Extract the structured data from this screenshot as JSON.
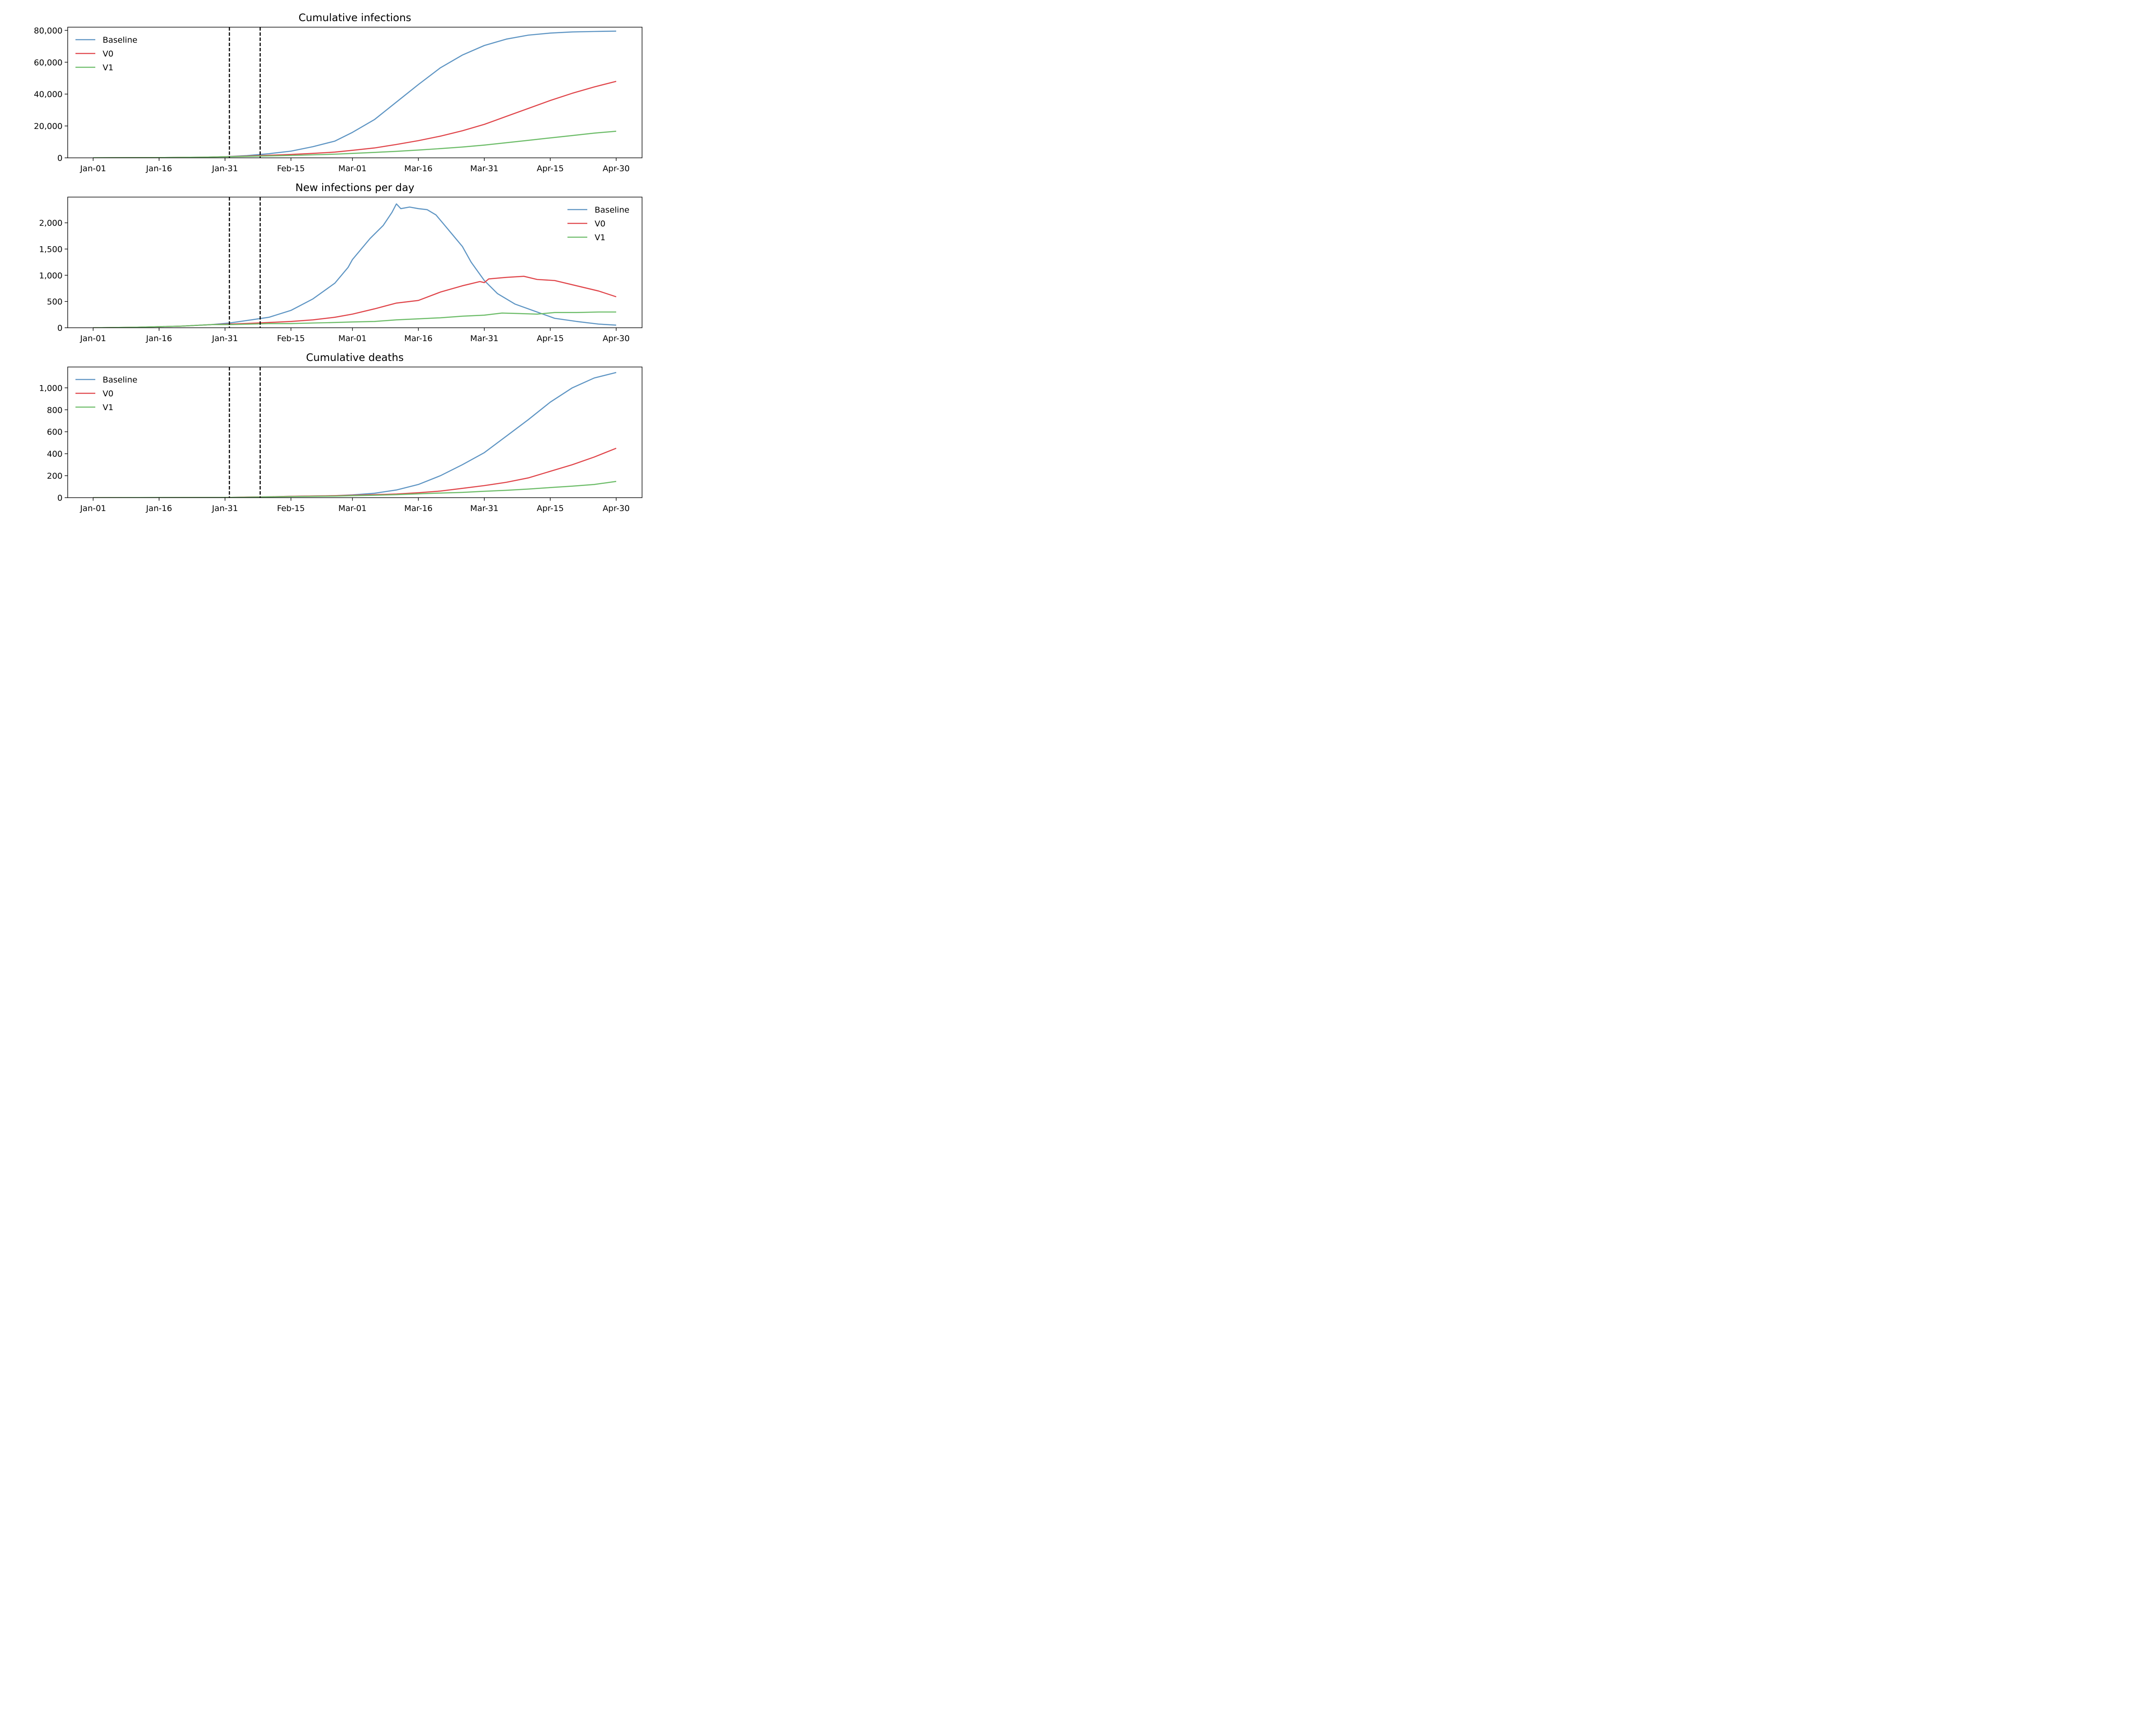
{
  "chart_data": [
    {
      "type": "line",
      "title": "Cumulative infections",
      "x_ticks": [
        "Jan-01",
        "Jan-16",
        "Jan-31",
        "Feb-15",
        "Mar-01",
        "Mar-16",
        "Mar-31",
        "Apr-15",
        "Apr-30"
      ],
      "x_range": [
        "Jan-01",
        "Apr-30"
      ],
      "y_ticks": [
        "0",
        "20,000",
        "40,000",
        "60,000",
        "80,000"
      ],
      "ylim": [
        0,
        82000
      ],
      "vlines": [
        "Feb-01",
        "Feb-08"
      ],
      "legend_position": "top-left",
      "series": [
        {
          "name": "Baseline",
          "color": "#6096c4",
          "x": [
            "Jan-01",
            "Jan-16",
            "Jan-26",
            "Jan-31",
            "Feb-05",
            "Feb-10",
            "Feb-15",
            "Feb-20",
            "Feb-25",
            "Mar-01",
            "Mar-06",
            "Mar-11",
            "Mar-16",
            "Mar-21",
            "Mar-26",
            "Mar-31",
            "Apr-05",
            "Apr-10",
            "Apr-15",
            "Apr-20",
            "Apr-25",
            "Apr-30"
          ],
          "y": [
            50,
            150,
            400,
            700,
            1400,
            2600,
            4200,
            7000,
            10500,
            16000,
            24000,
            35000,
            46000,
            56500,
            64500,
            70500,
            74500,
            77000,
            78300,
            79000,
            79300,
            79500
          ]
        },
        {
          "name": "V0",
          "color": "#e0474c",
          "x": [
            "Jan-01",
            "Jan-16",
            "Jan-26",
            "Jan-31",
            "Feb-05",
            "Feb-10",
            "Feb-15",
            "Feb-20",
            "Feb-25",
            "Mar-01",
            "Mar-06",
            "Mar-11",
            "Mar-16",
            "Mar-21",
            "Mar-26",
            "Mar-31",
            "Apr-05",
            "Apr-10",
            "Apr-15",
            "Apr-20",
            "Apr-25",
            "Apr-30"
          ],
          "y": [
            50,
            150,
            400,
            700,
            1100,
            1600,
            2100,
            2800,
            3600,
            4700,
            6200,
            8400,
            10800,
            13600,
            17000,
            21000,
            26000,
            31000,
            36000,
            40500,
            44500,
            48000
          ]
        },
        {
          "name": "V1",
          "color": "#6ebd6a",
          "x": [
            "Jan-01",
            "Jan-16",
            "Jan-26",
            "Jan-31",
            "Feb-05",
            "Feb-10",
            "Feb-15",
            "Feb-20",
            "Feb-25",
            "Mar-01",
            "Mar-06",
            "Mar-11",
            "Mar-16",
            "Mar-21",
            "Mar-26",
            "Mar-31",
            "Apr-05",
            "Apr-10",
            "Apr-15",
            "Apr-20",
            "Apr-25",
            "Apr-30"
          ],
          "y": [
            50,
            150,
            400,
            650,
            900,
            1200,
            1500,
            1900,
            2300,
            2800,
            3400,
            4100,
            4900,
            5800,
            6800,
            8000,
            9500,
            11000,
            12500,
            14000,
            15500,
            16700
          ]
        }
      ]
    },
    {
      "type": "line",
      "title": "New infections per day",
      "x_ticks": [
        "Jan-01",
        "Jan-16",
        "Jan-31",
        "Feb-15",
        "Mar-01",
        "Mar-16",
        "Mar-31",
        "Apr-15",
        "Apr-30"
      ],
      "x_range": [
        "Jan-01",
        "Apr-30"
      ],
      "y_ticks": [
        "0",
        "500",
        "1,000",
        "1,500",
        "2,000"
      ],
      "ylim": [
        0,
        2490
      ],
      "vlines": [
        "Feb-01",
        "Feb-08"
      ],
      "legend_position": "top-right",
      "series": [
        {
          "name": "Baseline",
          "color": "#6096c4",
          "x": [
            "Jan-01",
            "Jan-11",
            "Jan-21",
            "Jan-28",
            "Feb-01",
            "Feb-06",
            "Feb-10",
            "Feb-15",
            "Feb-20",
            "Feb-25",
            "Feb-28",
            "Mar-01",
            "Mar-05",
            "Mar-08",
            "Mar-10",
            "Mar-11",
            "Mar-12",
            "Mar-14",
            "Mar-16",
            "Mar-18",
            "Mar-20",
            "Mar-22",
            "Mar-24",
            "Mar-26",
            "Mar-28",
            "Mar-31",
            "Apr-03",
            "Apr-07",
            "Apr-12",
            "Apr-16",
            "Apr-21",
            "Apr-26",
            "Apr-30"
          ],
          "y": [
            0,
            10,
            30,
            60,
            90,
            150,
            200,
            330,
            550,
            850,
            1150,
            1300,
            1700,
            1950,
            2200,
            2360,
            2270,
            2300,
            2270,
            2250,
            2150,
            1950,
            1750,
            1550,
            1250,
            900,
            650,
            450,
            300,
            180,
            120,
            70,
            50
          ]
        },
        {
          "name": "V0",
          "color": "#e0474c",
          "x": [
            "Jan-01",
            "Jan-11",
            "Jan-21",
            "Jan-28",
            "Feb-01",
            "Feb-06",
            "Feb-10",
            "Feb-15",
            "Feb-20",
            "Feb-25",
            "Mar-01",
            "Mar-06",
            "Mar-11",
            "Mar-16",
            "Mar-21",
            "Mar-26",
            "Mar-30",
            "Mar-31",
            "Apr-01",
            "Apr-05",
            "Apr-09",
            "Apr-12",
            "Apr-16",
            "Apr-21",
            "Apr-26",
            "Apr-30"
          ],
          "y": [
            0,
            10,
            30,
            60,
            70,
            85,
            100,
            120,
            150,
            200,
            260,
            360,
            470,
            520,
            680,
            800,
            880,
            860,
            930,
            960,
            980,
            920,
            900,
            800,
            700,
            590
          ]
        },
        {
          "name": "V1",
          "color": "#6ebd6a",
          "x": [
            "Jan-01",
            "Jan-11",
            "Jan-21",
            "Jan-28",
            "Feb-01",
            "Feb-06",
            "Feb-10",
            "Feb-15",
            "Feb-20",
            "Feb-25",
            "Mar-01",
            "Mar-06",
            "Mar-11",
            "Mar-16",
            "Mar-21",
            "Mar-26",
            "Mar-31",
            "Apr-04",
            "Apr-08",
            "Apr-12",
            "Apr-16",
            "Apr-21",
            "Apr-26",
            "Apr-30"
          ],
          "y": [
            0,
            10,
            30,
            60,
            60,
            70,
            80,
            80,
            90,
            100,
            110,
            120,
            150,
            170,
            190,
            220,
            240,
            280,
            270,
            260,
            290,
            290,
            300,
            300
          ]
        }
      ]
    },
    {
      "type": "line",
      "title": "Cumulative deaths",
      "x_ticks": [
        "Jan-01",
        "Jan-16",
        "Jan-31",
        "Feb-15",
        "Mar-01",
        "Mar-16",
        "Mar-31",
        "Apr-15",
        "Apr-30"
      ],
      "x_range": [
        "Jan-01",
        "Apr-30"
      ],
      "y_ticks": [
        "0",
        "200",
        "400",
        "600",
        "800",
        "1,000"
      ],
      "ylim": [
        0,
        1190
      ],
      "vlines": [
        "Feb-01",
        "Feb-08"
      ],
      "legend_position": "top-left",
      "series": [
        {
          "name": "Baseline",
          "color": "#6096c4",
          "x": [
            "Jan-01",
            "Jan-31",
            "Feb-05",
            "Feb-10",
            "Feb-15",
            "Feb-20",
            "Feb-25",
            "Mar-01",
            "Mar-06",
            "Mar-11",
            "Mar-16",
            "Mar-21",
            "Mar-26",
            "Mar-31",
            "Apr-05",
            "Apr-10",
            "Apr-15",
            "Apr-20",
            "Apr-25",
            "Apr-30"
          ],
          "y": [
            0,
            2,
            5,
            8,
            12,
            15,
            18,
            25,
            40,
            70,
            120,
            200,
            300,
            410,
            560,
            710,
            870,
            1000,
            1090,
            1140
          ]
        },
        {
          "name": "V0",
          "color": "#e0474c",
          "x": [
            "Jan-01",
            "Jan-31",
            "Feb-05",
            "Feb-10",
            "Feb-15",
            "Feb-20",
            "Feb-25",
            "Mar-01",
            "Mar-06",
            "Mar-11",
            "Mar-16",
            "Mar-21",
            "Mar-26",
            "Mar-31",
            "Apr-05",
            "Apr-10",
            "Apr-15",
            "Apr-20",
            "Apr-25",
            "Apr-30"
          ],
          "y": [
            0,
            2,
            5,
            8,
            12,
            15,
            18,
            22,
            27,
            33,
            45,
            60,
            85,
            110,
            140,
            180,
            240,
            300,
            370,
            450
          ]
        },
        {
          "name": "V1",
          "color": "#6ebd6a",
          "x": [
            "Jan-01",
            "Jan-31",
            "Feb-05",
            "Feb-10",
            "Feb-15",
            "Feb-20",
            "Feb-25",
            "Mar-01",
            "Mar-06",
            "Mar-11",
            "Mar-16",
            "Mar-21",
            "Mar-26",
            "Mar-31",
            "Apr-05",
            "Apr-10",
            "Apr-15",
            "Apr-20",
            "Apr-25",
            "Apr-30"
          ],
          "y": [
            0,
            2,
            4,
            7,
            10,
            12,
            14,
            18,
            22,
            27,
            35,
            42,
            48,
            58,
            67,
            78,
            92,
            105,
            120,
            148
          ]
        }
      ]
    }
  ]
}
